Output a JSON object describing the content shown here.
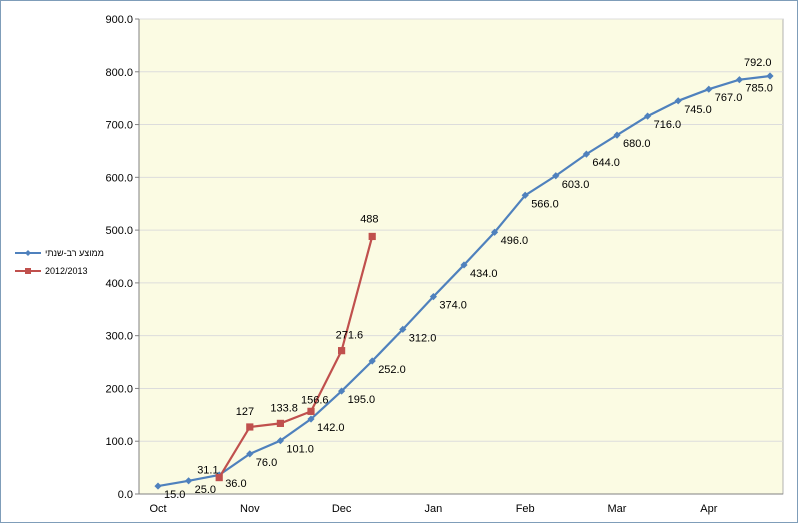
{
  "chart_data": {
    "type": "line",
    "title": "",
    "xlabel": "",
    "ylabel": "",
    "ylim": [
      0,
      900
    ],
    "y_ticks": [
      "0.0",
      "100.0",
      "200.0",
      "300.0",
      "400.0",
      "500.0",
      "600.0",
      "700.0",
      "800.0",
      "900.0"
    ],
    "x_month_labels": [
      "Oct",
      "Nov",
      "Dec",
      "Jan",
      "Feb",
      "Mar",
      "Apr"
    ],
    "plot_background": "#fbfbe3",
    "grid": true,
    "legend_position": "left",
    "series": [
      {
        "name": "ממוצע רב-שנתי",
        "color": "#4f81bd",
        "marker": "diamond",
        "x": [
          0,
          1,
          2,
          3,
          4,
          5,
          6,
          7,
          8,
          9,
          10,
          11,
          12,
          13,
          14,
          15,
          16,
          17,
          18,
          19,
          20
        ],
        "values": [
          15.0,
          25.0,
          36.0,
          76.0,
          101.0,
          142.0,
          195.0,
          252.0,
          312.0,
          374.0,
          434.0,
          496.0,
          566.0,
          603.0,
          644.0,
          680.0,
          716.0,
          745.0,
          767.0,
          785.0,
          792.0
        ],
        "labels": [
          "15.0",
          "25.0",
          "36.0",
          "76.0",
          "101.0",
          "142.0",
          "195.0",
          "252.0",
          "312.0",
          "374.0",
          "434.0",
          "496.0",
          "566.0",
          "603.0",
          "644.0",
          "680.0",
          "716.0",
          "745.0",
          "767.0",
          "785.0",
          "792.0"
        ]
      },
      {
        "name": "2012/2013",
        "color": "#c0504d",
        "marker": "square",
        "x": [
          2,
          3,
          4,
          5,
          6,
          7
        ],
        "values": [
          31.1,
          127,
          133.8,
          156.6,
          271.6,
          488
        ],
        "labels": [
          "31.1",
          "127",
          "133.8",
          "156.6",
          "271.6",
          "488"
        ]
      }
    ]
  }
}
